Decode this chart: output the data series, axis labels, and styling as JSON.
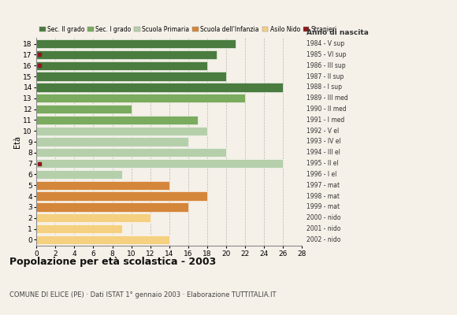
{
  "ages": [
    18,
    17,
    16,
    15,
    14,
    13,
    12,
    11,
    10,
    9,
    8,
    7,
    6,
    5,
    4,
    3,
    2,
    1,
    0
  ],
  "anno_nascita": [
    "1984 - V sup",
    "1985 - VI sup",
    "1986 - III sup",
    "1987 - II sup",
    "1988 - I sup",
    "1989 - III med",
    "1990 - II med",
    "1991 - I med",
    "1992 - V el",
    "1993 - IV el",
    "1994 - III el",
    "1995 - II el",
    "1996 - I el",
    "1997 - mat",
    "1998 - mat",
    "1999 - mat",
    "2000 - nido",
    "2001 - nido",
    "2002 - nido"
  ],
  "values": [
    21,
    19,
    18,
    20,
    26,
    22,
    10,
    17,
    18,
    16,
    20,
    26,
    9,
    14,
    18,
    16,
    12,
    9,
    14
  ],
  "stranieri": [
    0,
    1,
    1,
    0,
    0,
    0,
    0,
    0,
    0,
    0,
    0,
    1,
    0,
    0,
    0,
    0,
    0,
    0,
    0
  ],
  "bar_colors": {
    "18": "#4a7c3f",
    "17": "#4a7c3f",
    "16": "#4a7c3f",
    "15": "#4a7c3f",
    "14": "#4a7c3f",
    "13": "#7aab5e",
    "12": "#7aab5e",
    "11": "#7aab5e",
    "10": "#b5cfaa",
    "9": "#b5cfaa",
    "8": "#b5cfaa",
    "7": "#b5cfaa",
    "6": "#b5cfaa",
    "5": "#d4863a",
    "4": "#d4863a",
    "3": "#d4863a",
    "2": "#f5d080",
    "1": "#f5d080",
    "0": "#f5d080"
  },
  "stranieri_color": "#8b1a1a",
  "background_color": "#f5f0e8",
  "title": "Popolazione per età scolastica - 2003",
  "subtitle": "COMUNE DI ELICE (PE) · Dati ISTAT 1° gennaio 2003 · Elaborazione TUTTITALIA.IT",
  "ylabel": "Età",
  "right_label": "Anno di nascita",
  "xlim": [
    0,
    28
  ],
  "xticks": [
    0,
    2,
    4,
    6,
    8,
    10,
    12,
    14,
    16,
    18,
    20,
    22,
    24,
    26,
    28
  ],
  "legend_labels": [
    "Sec. II grado",
    "Sec. I grado",
    "Scuola Primaria",
    "Scuola dell'Infanzia",
    "Asilo Nido",
    "Stranieri"
  ],
  "legend_colors": [
    "#4a7c3f",
    "#7aab5e",
    "#b5cfaa",
    "#d4863a",
    "#f5d080",
    "#8b1a1a"
  ]
}
